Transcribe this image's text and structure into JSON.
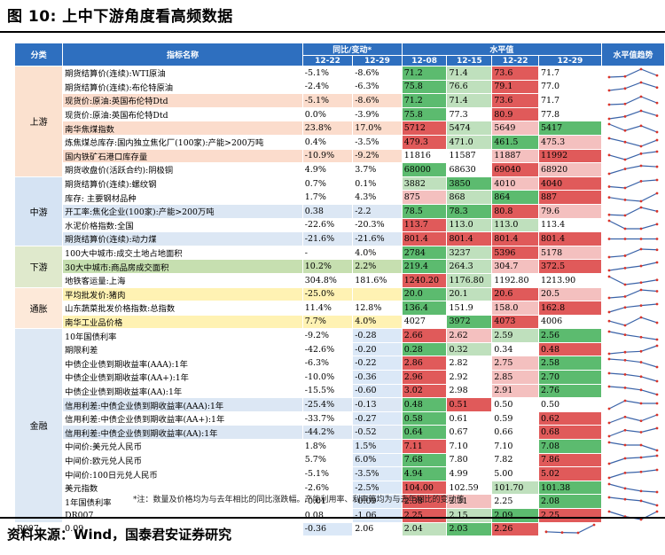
{
  "title": "图 10:  上中下游角度看高频数据",
  "source": "资料来源：Wind，国泰君安证券研究",
  "note": "*注：数量及价格均为与去年相比的同比涨跌幅。产能利用率、利率等均为与去年相比的变动值",
  "headers": {
    "category": "分类",
    "indicator": "指标名称",
    "yoy_group": "同比/变动*",
    "level_group": "水平值",
    "trend": "水平值趋势",
    "yoy_dates": [
      "12-22",
      "12-29"
    ],
    "level_dates": [
      "12-08",
      "12-15",
      "12-22",
      "12-29"
    ]
  },
  "categories": [
    {
      "label": "上游",
      "rows": 8,
      "bg": "c-up"
    },
    {
      "label": "中游",
      "rows": 5,
      "bg": "c-mid"
    },
    {
      "label": "下游",
      "rows": 3,
      "bg": "c-down"
    },
    {
      "label": "通胀",
      "rows": 3,
      "bg": "c-inf"
    },
    {
      "label": "金融",
      "rows": 14,
      "bg": "c-fin"
    }
  ],
  "rows": [
    {
      "name": "期货结算价(连续):WTI原油",
      "row_bg": "row-white",
      "yoy": [
        "-5.1%",
        "-8.6%"
      ],
      "levels": [
        "71.2",
        "71.4",
        "73.6",
        "71.7"
      ],
      "vbg": [
        "v-green",
        "v-lgreen",
        "v-red",
        "v-white"
      ],
      "trend": [
        71.2,
        71.4,
        73.6,
        71.7
      ]
    },
    {
      "name": "期货结算价(连续):布伦特原油",
      "row_bg": "row-white",
      "yoy": [
        "-2.4%",
        "-6.3%"
      ],
      "levels": [
        "75.8",
        "76.6",
        "79.1",
        "77.0"
      ],
      "vbg": [
        "v-green",
        "v-lgreen",
        "v-red",
        "v-white"
      ],
      "trend": [
        75.8,
        76.6,
        79.1,
        77.0
      ]
    },
    {
      "name": "现货价:原油:英国布伦特Dtd",
      "row_bg": "row-peach",
      "yoy": [
        "-5.1%",
        "-8.6%"
      ],
      "levels": [
        "71.2",
        "71.4",
        "73.6",
        "71.7"
      ],
      "vbg": [
        "v-green",
        "v-lgreen",
        "v-red",
        "v-white"
      ],
      "trend": [
        71.2,
        71.4,
        73.6,
        71.7
      ]
    },
    {
      "name": "现货价:原油:英国布伦特Dtd",
      "row_bg": "row-white",
      "yoy": [
        "0.0%",
        "-3.9%"
      ],
      "levels": [
        "75.8",
        "77.3",
        "80.9",
        "77.8"
      ],
      "vbg": [
        "v-green",
        "v-white",
        "v-red",
        "v-white"
      ],
      "trend": [
        75.8,
        77.3,
        80.9,
        77.8
      ]
    },
    {
      "name": "南华焦煤指数",
      "row_bg": "row-peach",
      "yoy": [
        "23.8%",
        "17.0%"
      ],
      "levels": [
        "5712",
        "5474",
        "5649",
        "5417"
      ],
      "vbg": [
        "v-red",
        "v-lgreen",
        "v-lred",
        "v-green"
      ],
      "trend": [
        5712,
        5474,
        5649,
        5417
      ]
    },
    {
      "name": "炼焦煤总库存:国内独立焦化厂(100家):产能>200万吨",
      "row_bg": "row-white",
      "yoy": [
        "0.4%",
        "-3.5%"
      ],
      "levels": [
        "479.3",
        "471.0",
        "461.5",
        "475.3"
      ],
      "vbg": [
        "v-red",
        "v-lgreen",
        "v-green",
        "v-lred"
      ],
      "trend": [
        479.3,
        471.0,
        461.5,
        475.3
      ]
    },
    {
      "name": "国内铁矿石港口库存量",
      "row_bg": "row-peach",
      "yoy": [
        "-10.9%",
        "-9.2%"
      ],
      "levels": [
        "11816",
        "11587",
        "11887",
        "11992"
      ],
      "vbg": [
        "v-white",
        "v-white",
        "v-lred",
        "v-red"
      ],
      "trend": [
        11816,
        11587,
        11887,
        11992
      ]
    },
    {
      "name": "期货收盘价(活跃合约):阴极铜",
      "row_bg": "row-white",
      "yoy": [
        "4.9%",
        "3.7%"
      ],
      "levels": [
        "68000",
        "68630",
        "69040",
        "68920"
      ],
      "vbg": [
        "v-green",
        "v-white",
        "v-red",
        "v-lred"
      ],
      "trend": [
        68000,
        68630,
        69040,
        68920
      ]
    },
    {
      "name": "期货结算价(连续):螺纹钢",
      "row_bg": "row-white",
      "yoy": [
        "0.7%",
        "0.1%"
      ],
      "levels": [
        "3882",
        "3850",
        "4010",
        "4040"
      ],
      "vbg": [
        "v-lgreen",
        "v-green",
        "v-lred",
        "v-red"
      ],
      "trend": [
        3882,
        3850,
        4010,
        4040
      ]
    },
    {
      "name": "库存: 主要钢材品种",
      "row_bg": "row-white",
      "yoy": [
        "1.7%",
        "4.3%"
      ],
      "levels": [
        "875",
        "868",
        "864",
        "887"
      ],
      "vbg": [
        "v-lred",
        "v-lgreen",
        "v-green",
        "v-red"
      ],
      "trend": [
        875,
        868,
        864,
        887
      ]
    },
    {
      "name": "开工率:焦化企业(100家):产能>200万吨",
      "row_bg": "row-blue",
      "yoy": [
        "0.38",
        "-2.2"
      ],
      "levels": [
        "78.5",
        "78.3",
        "80.8",
        "79.6"
      ],
      "vbg": [
        "v-green",
        "v-green",
        "v-red",
        "v-lred"
      ],
      "trend": [
        78.5,
        78.3,
        80.8,
        79.6
      ]
    },
    {
      "name": "水泥价格指数:全国",
      "row_bg": "row-white",
      "yoy": [
        "-22.6%",
        "-20.3%"
      ],
      "levels": [
        "113.7",
        "113.0",
        "113.0",
        "113.4"
      ],
      "vbg": [
        "v-red",
        "v-lgreen",
        "v-lgreen",
        "v-white"
      ],
      "trend": [
        113.7,
        113.0,
        113.0,
        113.4
      ]
    },
    {
      "name": "期货结算价(连续):动力煤",
      "row_bg": "row-blue",
      "yoy": [
        "-21.6%",
        "-21.6%"
      ],
      "levels": [
        "801.4",
        "801.4",
        "801.4",
        "801.4"
      ],
      "vbg": [
        "v-red",
        "v-red",
        "v-red",
        "v-red"
      ],
      "trend": [
        801.4,
        801.4,
        801.4,
        801.4
      ]
    },
    {
      "name": "100大中城市:成交土地占地面积",
      "row_bg": "row-white",
      "yoy": [
        "-",
        "4.0%"
      ],
      "levels": [
        "2784",
        "3237",
        "5396",
        "5178"
      ],
      "vbg": [
        "v-green",
        "v-lgreen",
        "v-red",
        "v-lred"
      ],
      "trend": [
        2784,
        3237,
        5396,
        5178
      ]
    },
    {
      "name": "30大中城市:商品房成交面积",
      "row_bg": "row-green",
      "yoy": [
        "10.2%",
        "2.2%"
      ],
      "levels": [
        "219.4",
        "264.3",
        "304.7",
        "372.5"
      ],
      "vbg": [
        "v-green",
        "v-lgreen",
        "v-lred",
        "v-red"
      ],
      "trend": [
        219.4,
        264.3,
        304.7,
        372.5
      ]
    },
    {
      "name": "地铁客运量:上海",
      "row_bg": "row-white",
      "yoy": [
        "304.8%",
        "181.6%"
      ],
      "levels": [
        "1240.20",
        "1176.80",
        "1192.80",
        "1213.90"
      ],
      "vbg": [
        "v-red",
        "v-lgreen",
        "v-white",
        "v-white"
      ],
      "trend": [
        1240.2,
        1176.8,
        1192.8,
        1213.9
      ]
    },
    {
      "name": "平均批发价:猪肉",
      "row_bg": "row-yellow",
      "yoy": [
        "-25.0%",
        ""
      ],
      "levels": [
        "20.0",
        "20.1",
        "20.6",
        "20.5"
      ],
      "vbg": [
        "v-green",
        "v-lgreen",
        "v-red",
        "v-lred"
      ],
      "trend": [
        20.0,
        20.1,
        20.6,
        20.5
      ]
    },
    {
      "name": "山东蔬菜批发价格指数:总指数",
      "row_bg": "row-white",
      "yoy": [
        "11.4%",
        "12.8%"
      ],
      "levels": [
        "136.4",
        "151.9",
        "158.0",
        "162.8"
      ],
      "vbg": [
        "v-green",
        "v-white",
        "v-lred",
        "v-red"
      ],
      "trend": [
        136.4,
        151.9,
        158.0,
        162.8
      ]
    },
    {
      "name": "南华工业品价格",
      "row_bg": "row-yellow",
      "yoy": [
        "7.7%",
        "4.0%"
      ],
      "levels": [
        "4027",
        "3972",
        "4073",
        "4006"
      ],
      "vbg": [
        "v-white",
        "v-green",
        "v-red",
        "v-white"
      ],
      "trend": [
        4027,
        3972,
        4073,
        4006
      ]
    },
    {
      "name": "10年国债利率",
      "row_bg": "row-white",
      "yoy": [
        "-9.2%",
        "-0.28"
      ],
      "levels": [
        "2.66",
        "2.62",
        "2.59",
        "2.56"
      ],
      "vbg": [
        "v-red",
        "v-lred",
        "v-lgreen",
        "v-green"
      ],
      "trend": [
        2.66,
        2.62,
        2.59,
        2.56
      ]
    },
    {
      "name": "期限利差",
      "row_bg": "row-white",
      "yoy": [
        "-42.6%",
        "-0.20"
      ],
      "levels": [
        "0.28",
        "0.32",
        "0.34",
        "0.48"
      ],
      "vbg": [
        "v-green",
        "v-lgreen",
        "v-white",
        "v-red"
      ],
      "trend": [
        0.28,
        0.32,
        0.34,
        0.48
      ]
    },
    {
      "name": "中债企业债到期收益率(AAA):1年",
      "row_bg": "row-white",
      "yoy": [
        "-6.3%",
        "-0.22"
      ],
      "levels": [
        "2.86",
        "2.82",
        "2.75",
        "2.58"
      ],
      "vbg": [
        "v-red",
        "v-white",
        "v-lred",
        "v-green"
      ],
      "trend": [
        2.86,
        2.82,
        2.75,
        2.58
      ]
    },
    {
      "name": "中债企业债到期收益率(AA+):1年",
      "row_bg": "row-white",
      "yoy": [
        "-10.0%",
        "-0.36"
      ],
      "levels": [
        "2.96",
        "2.92",
        "2.85",
        "2.70"
      ],
      "vbg": [
        "v-red",
        "v-white",
        "v-lred",
        "v-green"
      ],
      "trend": [
        2.96,
        2.92,
        2.85,
        2.7
      ]
    },
    {
      "name": "中债企业债到期收益率(AA):1年",
      "row_bg": "row-white",
      "yoy": [
        "-15.5%",
        "-0.60"
      ],
      "levels": [
        "3.02",
        "2.98",
        "2.91",
        "2.76"
      ],
      "vbg": [
        "v-red",
        "v-white",
        "v-lred",
        "v-green"
      ],
      "trend": [
        3.02,
        2.98,
        2.91,
        2.76
      ]
    },
    {
      "name": "信用利差:中债企业债到期收益率(AAA):1年",
      "row_bg": "row-blue",
      "yoy": [
        "-25.4%",
        "-0.13"
      ],
      "levels": [
        "0.48",
        "0.51",
        "0.50",
        "0.50"
      ],
      "vbg": [
        "v-green",
        "v-red",
        "v-white",
        "v-white"
      ],
      "trend": [
        0.48,
        0.51,
        0.5,
        0.5
      ]
    },
    {
      "name": "信用利差:中债企业债到期收益率(AA+):1年",
      "row_bg": "row-white",
      "yoy": [
        "-33.7%",
        "-0.27"
      ],
      "levels": [
        "0.58",
        "0.61",
        "0.59",
        "0.62"
      ],
      "vbg": [
        "v-green",
        "v-white",
        "v-white",
        "v-red"
      ],
      "trend": [
        0.58,
        0.61,
        0.59,
        0.62
      ]
    },
    {
      "name": "信用利差:中债企业债到期收益率(AA):1年",
      "row_bg": "row-blue",
      "yoy": [
        "-44.2%",
        "-0.52"
      ],
      "levels": [
        "0.64",
        "0.67",
        "0.66",
        "0.68"
      ],
      "vbg": [
        "v-green",
        "v-white",
        "v-white",
        "v-red"
      ],
      "trend": [
        0.64,
        0.67,
        0.66,
        0.68
      ]
    },
    {
      "name": "中间价:美元兑人民币",
      "row_bg": "row-white",
      "yoy": [
        "1.8%",
        "1.5%"
      ],
      "levels": [
        "7.11",
        "7.10",
        "7.10",
        "7.08"
      ],
      "vbg": [
        "v-red",
        "v-white",
        "v-white",
        "v-green"
      ],
      "trend": [
        7.11,
        7.1,
        7.1,
        7.08
      ]
    },
    {
      "name": "中间价:欧元兑人民币",
      "row_bg": "row-white",
      "yoy": [
        "5.7%",
        "6.0%"
      ],
      "levels": [
        "7.68",
        "7.80",
        "7.82",
        "7.86"
      ],
      "vbg": [
        "v-green",
        "v-white",
        "v-white",
        "v-red"
      ],
      "trend": [
        7.68,
        7.8,
        7.82,
        7.86
      ]
    },
    {
      "name": "中间价:100日元兑人民币",
      "row_bg": "row-white",
      "yoy": [
        "-5.1%",
        "-3.5%"
      ],
      "levels": [
        "4.94",
        "4.99",
        "5.00",
        "5.02"
      ],
      "vbg": [
        "v-green",
        "v-white",
        "v-white",
        "v-red"
      ],
      "trend": [
        4.94,
        4.99,
        5.0,
        5.02
      ]
    },
    {
      "name": "美元指数",
      "row_bg": "row-white",
      "yoy": [
        "-2.6%",
        "-2.5%"
      ],
      "levels": [
        "104.00",
        "102.59",
        "101.70",
        "101.38"
      ],
      "vbg": [
        "v-red",
        "v-white",
        "v-lgreen",
        "v-green"
      ],
      "trend": [
        104.0,
        102.59,
        101.7,
        101.38
      ]
    },
    {
      "name": "1年国债利率",
      "row_bg": "row-white",
      "yoy": [
        "-0.01",
        "-0.09"
      ],
      "levels": [
        "2.38",
        "2.31",
        "2.25",
        "2.08"
      ],
      "vbg": [
        "v-red",
        "v-lred",
        "v-white",
        "v-green"
      ],
      "trend": [
        2.38,
        2.31,
        2.25,
        2.08
      ]
    },
    {
      "name": "DR007",
      "row_bg": "row-white",
      "yoy": [
        "0.08",
        "-1.06"
      ],
      "levels": [
        "2.25",
        "2.15",
        "2.09",
        "2.25"
      ],
      "vbg": [
        "v-red",
        "v-lgreen",
        "v-green",
        "v-red"
      ],
      "trend": [
        2.25,
        2.15,
        2.09,
        2.25
      ]
    },
    {
      "name": "R007",
      "row_bg": "row-white",
      "yoy": [
        "0.09",
        "-0.36"
      ],
      "levels": [
        "2.06",
        "2.04",
        "2.03",
        "2.26"
      ],
      "vbg": [
        "v-white",
        "v-lgreen",
        "v-green",
        "v-red"
      ],
      "trend": [
        2.06,
        2.04,
        2.03,
        2.26
      ]
    }
  ],
  "colors": {
    "header": "#2e6fbf",
    "trend_line": "#3a63a8",
    "trend_point": "#d9342b"
  }
}
